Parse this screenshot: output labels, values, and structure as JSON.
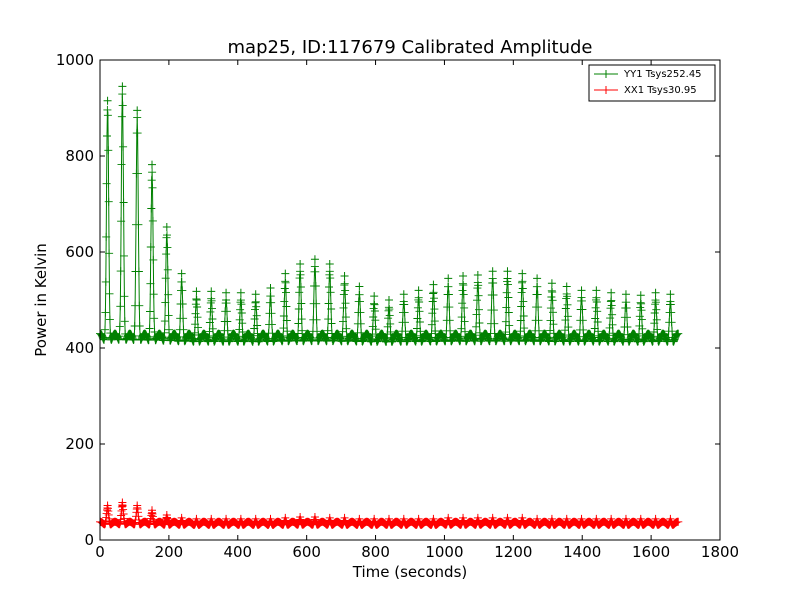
{
  "chart_data": {
    "type": "line",
    "title": "map25, ID:117679 Calibrated Amplitude",
    "xlabel": "Time (seconds)",
    "ylabel": "Power in Kelvin",
    "xlim": [
      0,
      1800
    ],
    "ylim": [
      0,
      1000
    ],
    "xticks": [
      0,
      200,
      400,
      600,
      800,
      1000,
      1200,
      1400,
      1600,
      1800
    ],
    "yticks": [
      0,
      200,
      400,
      600,
      800,
      1000
    ],
    "grid": false,
    "legend_position": "top-right",
    "marker": "+",
    "series": [
      {
        "name": "YY1 Tsys252.45",
        "color": "#008000",
        "baseline_min": 400,
        "baseline_max": 430,
        "peaks": [
          {
            "x": 22,
            "y": 915
          },
          {
            "x": 65,
            "y": 945
          },
          {
            "x": 108,
            "y": 895
          },
          {
            "x": 151,
            "y": 782
          },
          {
            "x": 194,
            "y": 652
          },
          {
            "x": 237,
            "y": 555
          },
          {
            "x": 280,
            "y": 518
          },
          {
            "x": 323,
            "y": 518
          },
          {
            "x": 366,
            "y": 515
          },
          {
            "x": 409,
            "y": 515
          },
          {
            "x": 452,
            "y": 512
          },
          {
            "x": 495,
            "y": 525
          },
          {
            "x": 538,
            "y": 555
          },
          {
            "x": 581,
            "y": 575
          },
          {
            "x": 624,
            "y": 585
          },
          {
            "x": 667,
            "y": 575
          },
          {
            "x": 710,
            "y": 550
          },
          {
            "x": 753,
            "y": 528
          },
          {
            "x": 796,
            "y": 508
          },
          {
            "x": 839,
            "y": 500
          },
          {
            "x": 882,
            "y": 512
          },
          {
            "x": 925,
            "y": 520
          },
          {
            "x": 968,
            "y": 532
          },
          {
            "x": 1011,
            "y": 545
          },
          {
            "x": 1054,
            "y": 550
          },
          {
            "x": 1097,
            "y": 552
          },
          {
            "x": 1140,
            "y": 560
          },
          {
            "x": 1183,
            "y": 560
          },
          {
            "x": 1226,
            "y": 555
          },
          {
            "x": 1269,
            "y": 545
          },
          {
            "x": 1312,
            "y": 535
          },
          {
            "x": 1355,
            "y": 528
          },
          {
            "x": 1398,
            "y": 520
          },
          {
            "x": 1441,
            "y": 520
          },
          {
            "x": 1484,
            "y": 515
          },
          {
            "x": 1527,
            "y": 512
          },
          {
            "x": 1570,
            "y": 510
          },
          {
            "x": 1613,
            "y": 515
          },
          {
            "x": 1656,
            "y": 512
          }
        ],
        "x_end": 1680
      },
      {
        "name": "XX1 Tsys30.95",
        "color": "#ff0000",
        "baseline_min": 28,
        "baseline_max": 38,
        "peaks": [
          {
            "x": 22,
            "y": 72
          },
          {
            "x": 65,
            "y": 78
          },
          {
            "x": 108,
            "y": 72
          },
          {
            "x": 151,
            "y": 62
          },
          {
            "x": 194,
            "y": 52
          },
          {
            "x": 237,
            "y": 46
          },
          {
            "x": 280,
            "y": 44
          },
          {
            "x": 323,
            "y": 44
          },
          {
            "x": 366,
            "y": 44
          },
          {
            "x": 409,
            "y": 44
          },
          {
            "x": 452,
            "y": 44
          },
          {
            "x": 495,
            "y": 44
          },
          {
            "x": 538,
            "y": 46
          },
          {
            "x": 581,
            "y": 48
          },
          {
            "x": 624,
            "y": 48
          },
          {
            "x": 667,
            "y": 46
          },
          {
            "x": 710,
            "y": 46
          },
          {
            "x": 753,
            "y": 44
          },
          {
            "x": 796,
            "y": 44
          },
          {
            "x": 839,
            "y": 44
          },
          {
            "x": 882,
            "y": 44
          },
          {
            "x": 925,
            "y": 44
          },
          {
            "x": 968,
            "y": 44
          },
          {
            "x": 1011,
            "y": 46
          },
          {
            "x": 1054,
            "y": 46
          },
          {
            "x": 1097,
            "y": 46
          },
          {
            "x": 1140,
            "y": 46
          },
          {
            "x": 1183,
            "y": 46
          },
          {
            "x": 1226,
            "y": 46
          },
          {
            "x": 1269,
            "y": 44
          },
          {
            "x": 1312,
            "y": 44
          },
          {
            "x": 1355,
            "y": 44
          },
          {
            "x": 1398,
            "y": 44
          },
          {
            "x": 1441,
            "y": 44
          },
          {
            "x": 1484,
            "y": 44
          },
          {
            "x": 1527,
            "y": 44
          },
          {
            "x": 1570,
            "y": 44
          },
          {
            "x": 1613,
            "y": 44
          },
          {
            "x": 1656,
            "y": 44
          }
        ],
        "x_end": 1680
      }
    ]
  }
}
